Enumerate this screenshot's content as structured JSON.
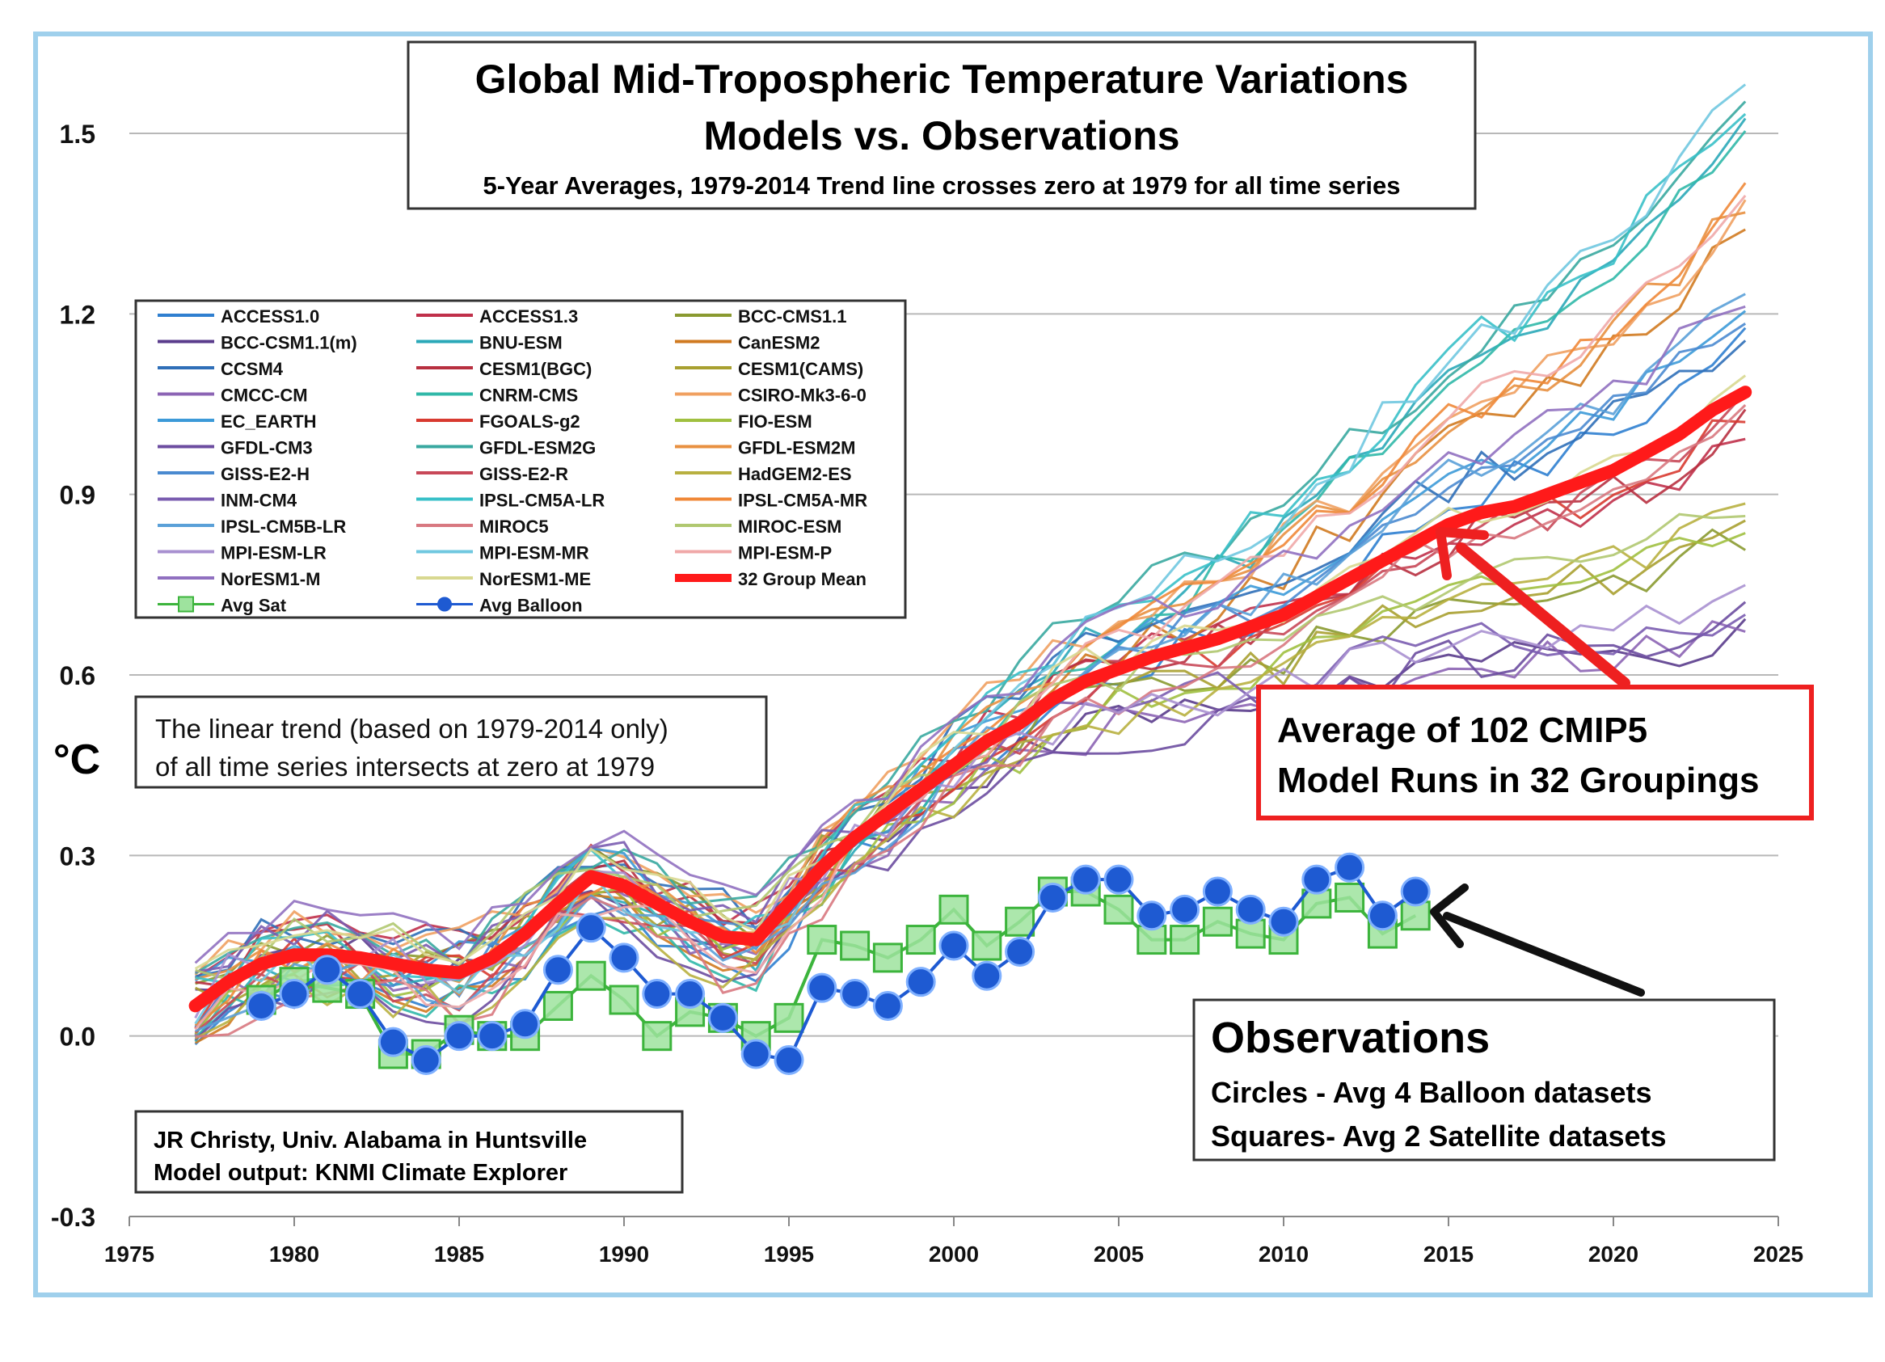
{
  "chart_data": {
    "type": "line",
    "title": "Global Mid-Tropospheric Temperature Variations",
    "title_line2": "Models vs. Observations",
    "subtitle": "5-Year Averages, 1979-2014 Trend line crosses zero at 1979 for all time series",
    "ylabel": "°C",
    "xlabel": "",
    "xlim": [
      1975,
      2025
    ],
    "ylim": [
      -0.3,
      1.5
    ],
    "x_ticks": [
      "1975",
      "1980",
      "1985",
      "1990",
      "1995",
      "2000",
      "2005",
      "2010",
      "2015",
      "2020",
      "2025"
    ],
    "y_ticks": [
      "1.5",
      "1.2",
      "0.9",
      "0.6",
      "0.3",
      "0.0",
      "-0.3"
    ],
    "grid": "horizontal",
    "legend_position": "top-left",
    "model_series": [
      {
        "name": "ACCESS1.0",
        "color": "#2f7fd0"
      },
      {
        "name": "ACCESS1.3",
        "color": "#c0304a"
      },
      {
        "name": "BCC-CMS1.1",
        "color": "#8a9a30"
      },
      {
        "name": "BCC-CSM1.1(m)",
        "color": "#5a3c8c"
      },
      {
        "name": "BNU-ESM",
        "color": "#2aa8b8"
      },
      {
        "name": "CanESM2",
        "color": "#d07a20"
      },
      {
        "name": "CCSM4",
        "color": "#2f6fb8"
      },
      {
        "name": "CESM1(BGC)",
        "color": "#b83040"
      },
      {
        "name": "CESM1(CAMS)",
        "color": "#a8a030"
      },
      {
        "name": "CMCC-CM",
        "color": "#8c64b4"
      },
      {
        "name": "CNRM-CMS",
        "color": "#30b8a8"
      },
      {
        "name": "CSIRO-Mk3-6-0",
        "color": "#f0a060"
      },
      {
        "name": "EC_EARTH",
        "color": "#3c9ad8"
      },
      {
        "name": "FGOALS-g2",
        "color": "#d83a30"
      },
      {
        "name": "FIO-ESM",
        "color": "#a0c040"
      },
      {
        "name": "GFDL-CM3",
        "color": "#6c4ca0"
      },
      {
        "name": "GFDL-ESM2G",
        "color": "#38a8a0"
      },
      {
        "name": "GFDL-ESM2M",
        "color": "#e89040"
      },
      {
        "name": "GISS-E2-H",
        "color": "#4a8ad0"
      },
      {
        "name": "GISS-E2-R",
        "color": "#c84858"
      },
      {
        "name": "HadGEM2-ES",
        "color": "#b8b040"
      },
      {
        "name": "INM-CM4",
        "color": "#7a5cb0"
      },
      {
        "name": "IPSL-CM5A-LR",
        "color": "#38c0c8"
      },
      {
        "name": "IPSL-CM5A-MR",
        "color": "#f08838"
      },
      {
        "name": "IPSL-CM5B-LR",
        "color": "#5aa0d8"
      },
      {
        "name": "MIROC5",
        "color": "#d87880"
      },
      {
        "name": "MIROC-ESM",
        "color": "#b0c870"
      },
      {
        "name": "MPI-ESM-LR",
        "color": "#a890d0"
      },
      {
        "name": "MPI-ESM-MR",
        "color": "#70c8e0"
      },
      {
        "name": "MPI-ESM-P",
        "color": "#f0a8a8"
      },
      {
        "name": "NorESM1-M",
        "color": "#9070c0"
      },
      {
        "name": "NorESM1-ME",
        "color": "#d8d890"
      }
    ],
    "mean_series": {
      "name": "32 Group Mean",
      "color": "#ff1a1a",
      "x": [
        1977,
        1978,
        1979,
        1980,
        1981,
        1982,
        1983,
        1984,
        1985,
        1986,
        1987,
        1988,
        1989,
        1990,
        1991,
        1992,
        1993,
        1994,
        1995,
        1996,
        1997,
        1998,
        1999,
        2000,
        2001,
        2002,
        2003,
        2004,
        2005,
        2006,
        2007,
        2008,
        2009,
        2010,
        2011,
        2012,
        2013,
        2014,
        2015,
        2016,
        2017,
        2018,
        2019,
        2020,
        2021,
        2022,
        2023,
        2024
      ],
      "y": [
        0.05,
        0.09,
        0.12,
        0.135,
        0.135,
        0.13,
        0.12,
        0.11,
        0.105,
        0.13,
        0.17,
        0.22,
        0.265,
        0.25,
        0.22,
        0.19,
        0.165,
        0.16,
        0.22,
        0.28,
        0.33,
        0.37,
        0.41,
        0.45,
        0.49,
        0.52,
        0.56,
        0.59,
        0.61,
        0.63,
        0.645,
        0.66,
        0.68,
        0.7,
        0.73,
        0.76,
        0.79,
        0.82,
        0.85,
        0.87,
        0.88,
        0.9,
        0.92,
        0.94,
        0.97,
        1.0,
        1.04,
        1.07
      ]
    },
    "avg_sat": {
      "name": "Avg Sat",
      "color": "#3cb43c",
      "x": [
        1979,
        1980,
        1981,
        1982,
        1983,
        1984,
        1985,
        1986,
        1987,
        1988,
        1989,
        1990,
        1991,
        1992,
        1993,
        1994,
        1995,
        1996,
        1997,
        1998,
        1999,
        2000,
        2001,
        2002,
        2003,
        2004,
        2005,
        2006,
        2007,
        2008,
        2009,
        2010,
        2011,
        2012,
        2013,
        2014
      ],
      "y": [
        0.06,
        0.09,
        0.08,
        0.07,
        -0.03,
        -0.03,
        0.01,
        0.0,
        0.0,
        0.05,
        0.1,
        0.06,
        0.0,
        0.04,
        0.03,
        0.0,
        0.03,
        0.16,
        0.15,
        0.13,
        0.16,
        0.21,
        0.15,
        0.19,
        0.24,
        0.24,
        0.21,
        0.16,
        0.16,
        0.19,
        0.17,
        0.16,
        0.22,
        0.23,
        0.17,
        0.2
      ]
    },
    "avg_balloon": {
      "name": "Avg Balloon",
      "color": "#1e5ad2",
      "x": [
        1979,
        1980,
        1981,
        1982,
        1983,
        1984,
        1985,
        1986,
        1987,
        1988,
        1989,
        1990,
        1991,
        1992,
        1993,
        1994,
        1995,
        1996,
        1997,
        1998,
        1999,
        2000,
        2001,
        2002,
        2003,
        2004,
        2005,
        2006,
        2007,
        2008,
        2009,
        2010,
        2011,
        2012,
        2013,
        2014
      ],
      "y": [
        0.05,
        0.07,
        0.11,
        0.07,
        -0.01,
        -0.04,
        0.0,
        0.0,
        0.02,
        0.11,
        0.18,
        0.13,
        0.07,
        0.07,
        0.03,
        -0.03,
        -0.04,
        0.08,
        0.07,
        0.05,
        0.09,
        0.15,
        0.1,
        0.14,
        0.23,
        0.26,
        0.26,
        0.2,
        0.21,
        0.24,
        0.21,
        0.19,
        0.26,
        0.28,
        0.2,
        0.24
      ]
    },
    "annotations": {
      "trend_note": [
        "The linear trend (based on 1979-2014 only)",
        "of all time series intersects at zero at 1979"
      ],
      "cmip5_note": [
        "Average of 102 CMIP5",
        "Model Runs in 32 Groupings"
      ],
      "obs_title": "Observations",
      "obs_circles": "Circles - Avg 4 Balloon datasets",
      "obs_squares": "Squares- Avg 2 Satellite datasets",
      "credit": [
        "JR Christy, Univ. Alabama in Huntsville",
        "Model output: KNMI Climate Explorer"
      ]
    },
    "colors": {
      "frame": "#9fd0ec",
      "gridline": "#b8b8b8",
      "cmip5_box": "#ee2020",
      "black_arrow": "#111111"
    }
  }
}
